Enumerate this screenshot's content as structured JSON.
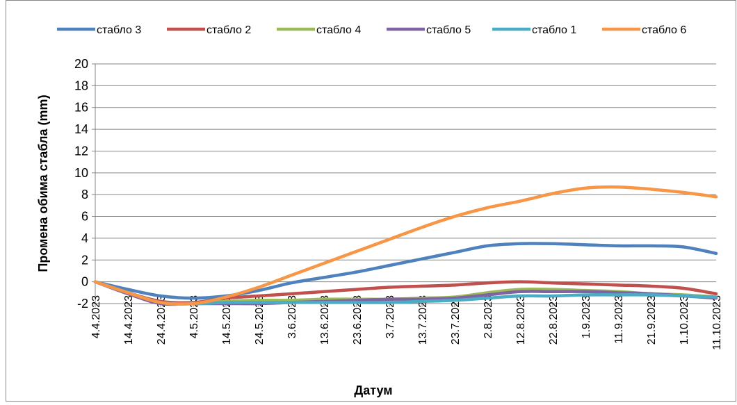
{
  "chart_data": {
    "type": "line",
    "x_label": "Датум",
    "y_label": "Промена обима стабла (mm)",
    "categories": [
      "4.4.2023",
      "14.4.2023",
      "24.4.2023",
      "4.5.2023",
      "14.5.2023",
      "24.5.2023",
      "3.6.2023",
      "13.6.2023",
      "23.6.2023",
      "3.7.2023",
      "13.7.2023",
      "23.7.2023",
      "2.8.2023",
      "12.8.2023",
      "22.8.2023",
      "1.9.2023",
      "11.9.2023",
      "21.9.2023",
      "1.10.2023",
      "11.10.2023"
    ],
    "series": [
      {
        "name": "стабло 3",
        "color": "#4f81bd",
        "values": [
          0,
          -0.7,
          -1.3,
          -1.5,
          -1.3,
          -0.8,
          -0.1,
          0.4,
          0.9,
          1.5,
          2.1,
          2.7,
          3.3,
          3.5,
          3.5,
          3.4,
          3.3,
          3.3,
          3.2,
          2.6
        ]
      },
      {
        "name": "стабло 2",
        "color": "#c0504d",
        "values": [
          0,
          -1,
          -1.8,
          -1.9,
          -1.5,
          -1.3,
          -1.1,
          -0.9,
          -0.7,
          -0.5,
          -0.4,
          -0.3,
          -0.1,
          0,
          -0.1,
          -0.2,
          -0.3,
          -0.4,
          -0.6,
          -1.1
        ]
      },
      {
        "name": "стабло 4",
        "color": "#9bbb59",
        "values": [
          0,
          -1,
          -1.9,
          -2,
          -1.8,
          -1.7,
          -1.7,
          -1.6,
          -1.6,
          -1.6,
          -1.5,
          -1.4,
          -1,
          -0.7,
          -0.7,
          -0.8,
          -0.9,
          -1.1,
          -1.2,
          -1.4
        ]
      },
      {
        "name": "стабло 5",
        "color": "#8064a2",
        "values": [
          0,
          -1.1,
          -2,
          -2,
          -2,
          -2,
          -1.9,
          -1.8,
          -1.7,
          -1.6,
          -1.6,
          -1.5,
          -1.2,
          -0.9,
          -0.9,
          -0.9,
          -1,
          -1.1,
          -1.3,
          -1.5
        ]
      },
      {
        "name": "стабло 1",
        "color": "#4bacc6",
        "values": [
          0,
          -1,
          -1.9,
          -2,
          -1.9,
          -1.9,
          -1.9,
          -1.9,
          -1.9,
          -1.9,
          -1.8,
          -1.7,
          -1.5,
          -1.3,
          -1.3,
          -1.2,
          -1.2,
          -1.2,
          -1.3,
          -1.4
        ]
      },
      {
        "name": "стабло 6",
        "color": "#f79646",
        "values": [
          0,
          -1,
          -1.9,
          -2,
          -1.4,
          -0.5,
          0.6,
          1.7,
          2.8,
          3.9,
          5,
          6,
          6.8,
          7.4,
          8.1,
          8.6,
          8.7,
          8.5,
          8.2,
          7.8
        ]
      }
    ],
    "ylim": [
      -2,
      20
    ],
    "yticks": [
      -2,
      0,
      2,
      4,
      6,
      8,
      10,
      12,
      14,
      16,
      18,
      20
    ],
    "grid": true,
    "legend": "top"
  }
}
